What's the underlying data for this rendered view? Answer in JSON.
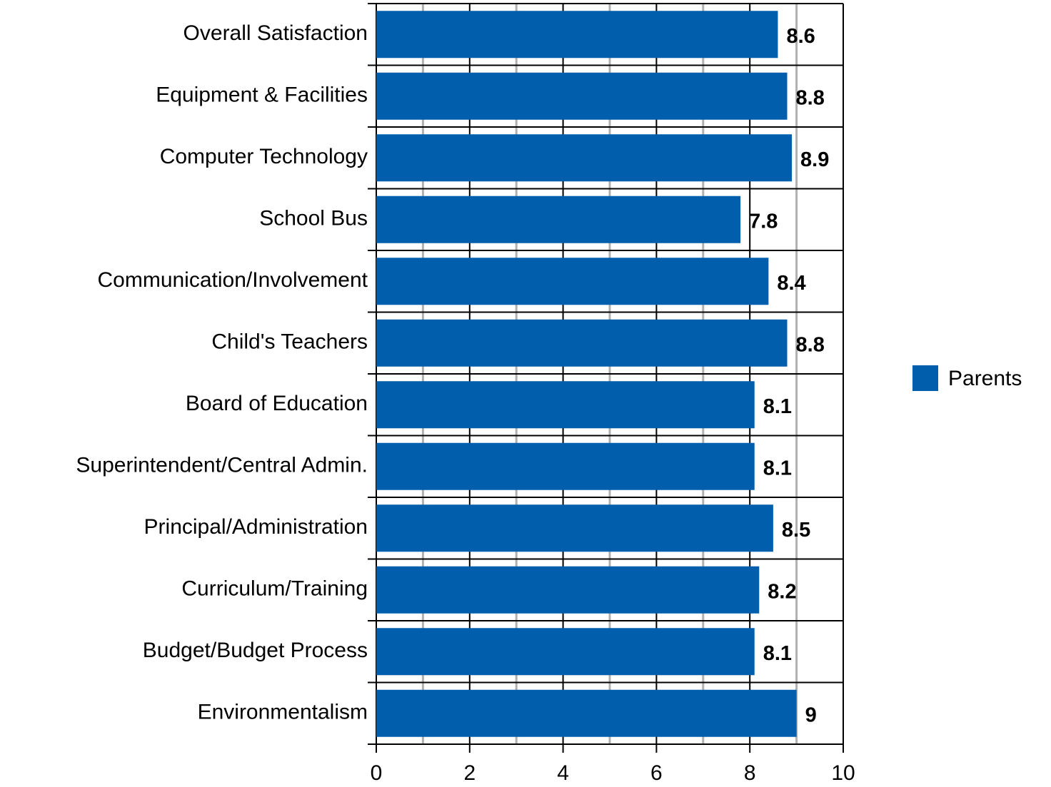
{
  "chart_data": {
    "type": "barh",
    "categories": [
      "Overall Satisfaction",
      "Equipment & Facilities",
      "Computer Technology",
      "School Bus",
      "Communication/Involvement",
      "Child's Teachers",
      "Board of Education",
      "Superintendent/Central Admin.",
      "Principal/Administration",
      "Curriculum/Training",
      "Budget/Budget Process",
      "Environmentalism"
    ],
    "series": [
      {
        "name": "Parents",
        "color": "#005eac",
        "values": [
          8.6,
          8.8,
          8.9,
          7.8,
          8.4,
          8.8,
          8.1,
          8.1,
          8.5,
          8.2,
          8.1,
          9
        ]
      }
    ],
    "xlim": [
      0,
      10
    ],
    "xticks": [
      0,
      2,
      4,
      6,
      8,
      10
    ],
    "minor_xticks": [
      1,
      3,
      5,
      7,
      9
    ],
    "grid": true,
    "legend": "right"
  }
}
